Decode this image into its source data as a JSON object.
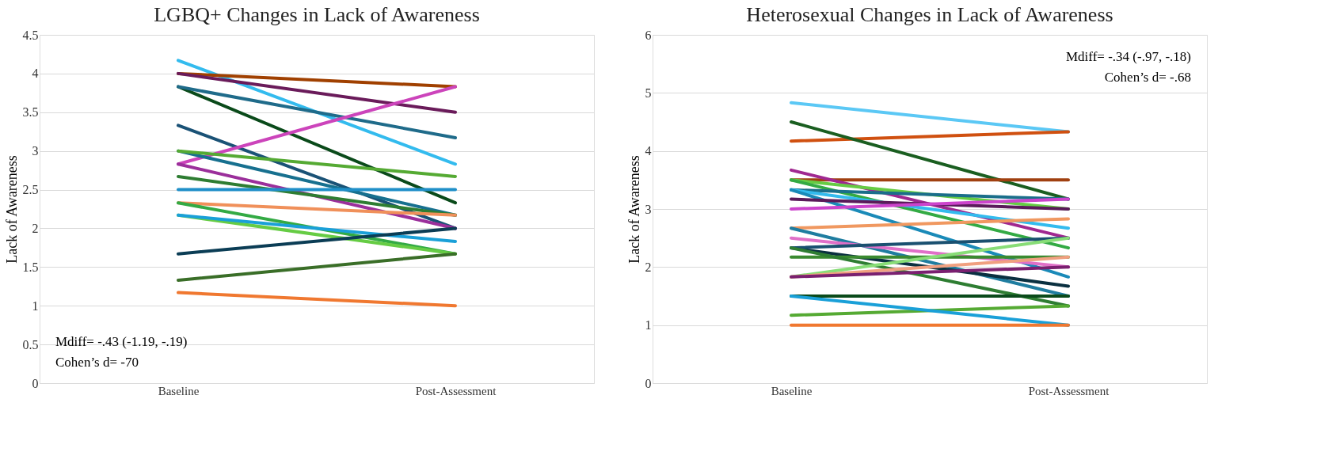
{
  "chart_data": [
    {
      "type": "line",
      "title": "LGBQ+ Changes in Lack of Awareness",
      "ylabel": "Lack of Awareness",
      "categories": [
        "Baseline",
        "Post-Assessment"
      ],
      "ylim": [
        0,
        4.5
      ],
      "yticks": [
        0,
        0.5,
        1,
        1.5,
        2,
        2.5,
        3,
        3.5,
        4,
        4.5
      ],
      "grid": "y",
      "legend": false,
      "annotations": [
        "Mdiff= -.43 (-1.19, -.19)",
        "Cohen’s d= -70"
      ],
      "series": [
        {
          "color": "#33bbee",
          "values": [
            4.17,
            2.83
          ]
        },
        {
          "color": "#a04000",
          "values": [
            4.0,
            3.83
          ]
        },
        {
          "color": "#6a1b5a",
          "values": [
            4.0,
            3.5
          ]
        },
        {
          "color": "#0a4a1a",
          "values": [
            3.83,
            2.33
          ]
        },
        {
          "color": "#1f6b8a",
          "values": [
            3.83,
            3.17
          ]
        },
        {
          "color": "#1a5276",
          "values": [
            3.33,
            2.0
          ]
        },
        {
          "color": "#cc44bb",
          "values": [
            2.83,
            3.83
          ]
        },
        {
          "color": "#17708f",
          "values": [
            3.0,
            2.17
          ]
        },
        {
          "color": "#55aa33",
          "values": [
            3.0,
            2.67
          ]
        },
        {
          "color": "#9b2f9b",
          "values": [
            2.83,
            2.0
          ]
        },
        {
          "color": "#2e7d32",
          "values": [
            2.67,
            2.17
          ]
        },
        {
          "color": "#1f8fc8",
          "values": [
            2.5,
            2.5
          ]
        },
        {
          "color": "#f0905a",
          "values": [
            2.33,
            2.17
          ]
        },
        {
          "color": "#33aa44",
          "values": [
            2.33,
            1.67
          ]
        },
        {
          "color": "#66cc44",
          "values": [
            2.17,
            1.67
          ]
        },
        {
          "color": "#1aa0d8",
          "values": [
            2.17,
            1.83
          ]
        },
        {
          "color": "#0b3d55",
          "values": [
            1.67,
            2.0
          ]
        },
        {
          "color": "#3a6e28",
          "values": [
            1.33,
            1.67
          ]
        },
        {
          "color": "#f07830",
          "values": [
            1.17,
            1.0
          ]
        }
      ]
    },
    {
      "type": "line",
      "title": "Heterosexual Changes in Lack of Awareness",
      "ylabel": "Lack of Awareness",
      "categories": [
        "Baseline",
        "Post-Assessment"
      ],
      "ylim": [
        0,
        6
      ],
      "yticks": [
        0,
        1,
        2,
        3,
        4,
        5,
        6
      ],
      "grid": "y",
      "legend": false,
      "annotations": [
        "Mdiff= -.34 (-.97, -.18)",
        "Cohen’s d= -.68"
      ],
      "series": [
        {
          "color": "#5bc8f5",
          "values": [
            4.83,
            4.33
          ]
        },
        {
          "color": "#d05010",
          "values": [
            4.17,
            4.33
          ]
        },
        {
          "color": "#1a5e20",
          "values": [
            4.5,
            3.17
          ]
        },
        {
          "color": "#a04010",
          "values": [
            3.5,
            3.5
          ]
        },
        {
          "color": "#a02890",
          "values": [
            3.67,
            2.5
          ]
        },
        {
          "color": "#66cc44",
          "values": [
            3.5,
            3.0
          ]
        },
        {
          "color": "#33aa44",
          "values": [
            3.5,
            2.33
          ]
        },
        {
          "color": "#1a6e8a",
          "values": [
            3.33,
            3.17
          ]
        },
        {
          "color": "#33bbee",
          "values": [
            3.33,
            2.67
          ]
        },
        {
          "color": "#1a8ab8",
          "values": [
            3.33,
            1.83
          ]
        },
        {
          "color": "#5a1a5a",
          "values": [
            3.17,
            3.0
          ]
        },
        {
          "color": "#cc44cc",
          "values": [
            3.0,
            3.17
          ]
        },
        {
          "color": "#f09860",
          "values": [
            2.67,
            2.83
          ]
        },
        {
          "color": "#1f7da0",
          "values": [
            2.67,
            1.5
          ]
        },
        {
          "color": "#e070c8",
          "values": [
            2.5,
            2.0
          ]
        },
        {
          "color": "#0a3040",
          "values": [
            2.33,
            1.67
          ]
        },
        {
          "color": "#1a5070",
          "values": [
            2.33,
            2.5
          ]
        },
        {
          "color": "#3a8a30",
          "values": [
            2.17,
            2.17
          ]
        },
        {
          "color": "#2e7d32",
          "values": [
            2.33,
            1.33
          ]
        },
        {
          "color": "#88dd77",
          "values": [
            1.83,
            2.5
          ]
        },
        {
          "color": "#f0a080",
          "values": [
            1.83,
            2.17
          ]
        },
        {
          "color": "#7a2070",
          "values": [
            1.83,
            2.0
          ]
        },
        {
          "color": "#0a4a1a",
          "values": [
            1.5,
            1.5
          ]
        },
        {
          "color": "#55aa33",
          "values": [
            1.17,
            1.33
          ]
        },
        {
          "color": "#1aa0d8",
          "values": [
            1.5,
            1.0
          ]
        },
        {
          "color": "#f07830",
          "values": [
            1.0,
            1.0
          ]
        }
      ]
    }
  ]
}
